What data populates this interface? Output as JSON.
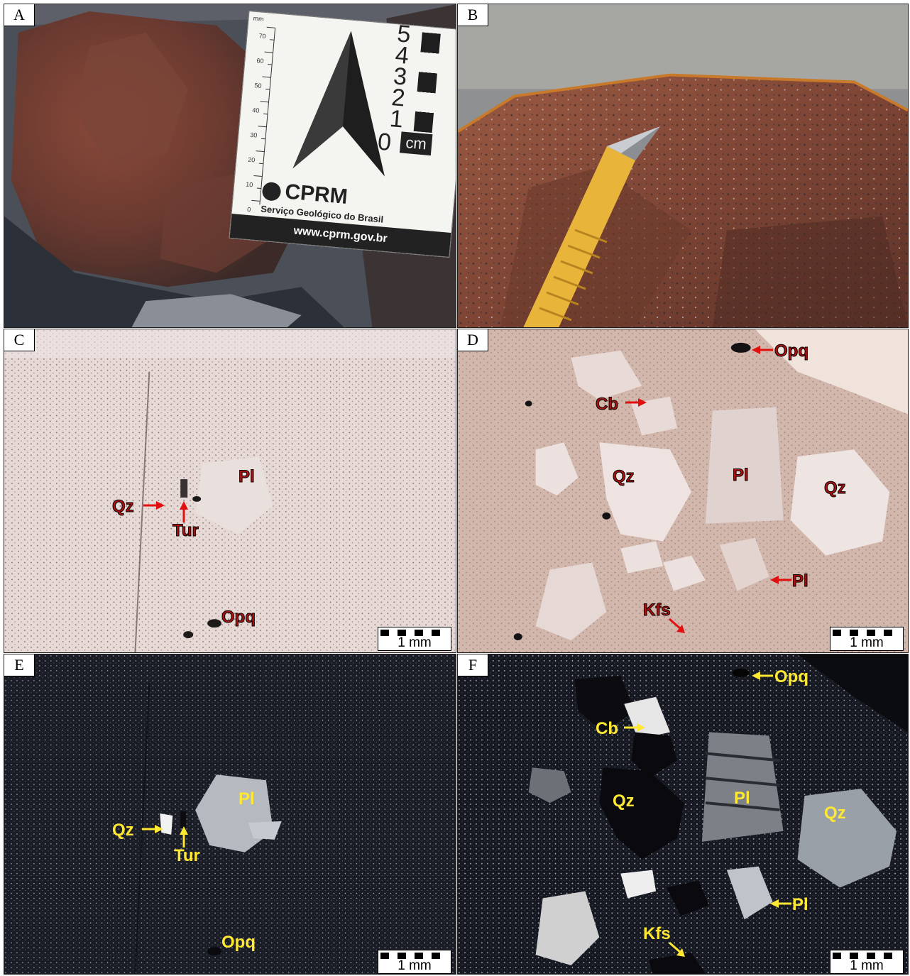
{
  "panels": [
    {
      "id": "A",
      "letter": "A"
    },
    {
      "id": "B",
      "letter": "B"
    },
    {
      "id": "C",
      "letter": "C"
    },
    {
      "id": "D",
      "letter": "D"
    },
    {
      "id": "E",
      "letter": "E"
    },
    {
      "id": "F",
      "letter": "F"
    }
  ],
  "scale_card": {
    "ruler_unit": "mm",
    "ruler_ticks": [
      "70",
      "60",
      "50",
      "40",
      "30",
      "20",
      "10",
      "0"
    ],
    "cm_numbers": [
      "5",
      "4",
      "3",
      "2",
      "1",
      "0"
    ],
    "cm_label": "cm",
    "brand": "CPRM",
    "subbrand": "Serviço Geológico do Brasil",
    "url": "www.cprm.gov.br"
  },
  "labels": {
    "C": {
      "pl": "Pl",
      "qz": "Qz",
      "tur": "Tur",
      "opq": "Opq"
    },
    "D": {
      "opq": "Opq",
      "cb": "Cb",
      "qz1": "Qz",
      "pl1": "Pl",
      "qz2": "Qz",
      "pl2": "Pl",
      "kfs": "Kfs"
    },
    "E": {
      "pl": "Pl",
      "qz": "Qz",
      "tur": "Tur",
      "opq": "Opq"
    },
    "F": {
      "opq": "Opq",
      "cb": "Cb",
      "qz1": "Qz",
      "pl1": "Pl",
      "qz2": "Qz",
      "pl2": "Pl",
      "kfs": "Kfs"
    }
  },
  "scale_bar_label": "1 mm",
  "colors": {
    "label_red": "#b01010",
    "label_yellow": "#ffe833"
  }
}
